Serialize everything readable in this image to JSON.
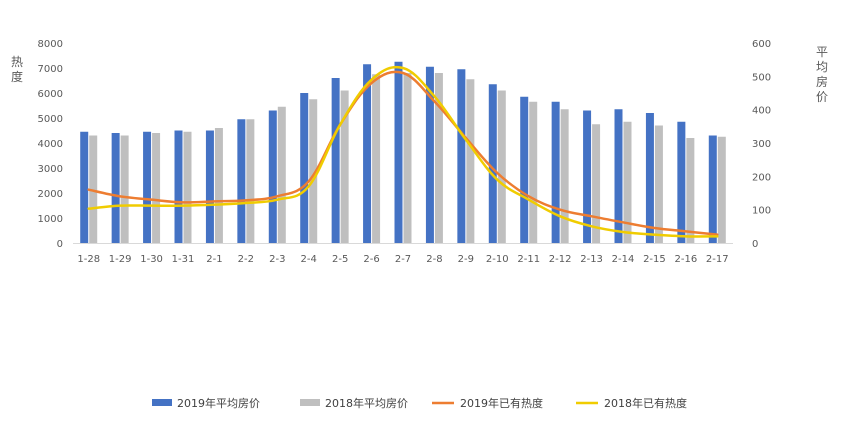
{
  "chart_data": {
    "type": "bar",
    "categories": [
      "1-28",
      "1-29",
      "1-30",
      "1-31",
      "2-1",
      "2-2",
      "2-3",
      "2-4",
      "2-5",
      "2-6",
      "2-7",
      "2-8",
      "2-9",
      "2-10",
      "2-11",
      "2-12",
      "2-13",
      "2-14",
      "2-15",
      "2-16",
      "2-17"
    ],
    "y_left": {
      "label": "热度",
      "ylim": [
        0,
        8000
      ],
      "ticks": [
        0,
        1000,
        2000,
        3000,
        4000,
        5000,
        6000,
        7000,
        8000
      ]
    },
    "y_right": {
      "label": "平均房价",
      "ylim": [
        0,
        600
      ],
      "ticks": [
        0,
        100,
        200,
        300,
        400,
        500,
        600
      ]
    },
    "series": [
      {
        "name": "2019年平均房价",
        "kind": "bar",
        "axis": "left",
        "color": "#4472C4",
        "values": [
          4450,
          4400,
          4450,
          4500,
          4500,
          4950,
          5300,
          6000,
          6600,
          7150,
          7250,
          7050,
          6950,
          6350,
          5850,
          5650,
          5300,
          5350,
          5200,
          4850,
          4300
        ]
      },
      {
        "name": "2018年平均房价",
        "kind": "bar",
        "axis": "left",
        "color": "#BFBFBF",
        "values": [
          4300,
          4300,
          4400,
          4450,
          4600,
          4950,
          5450,
          5750,
          6100,
          6750,
          6800,
          6800,
          6550,
          6100,
          5650,
          5350,
          4750,
          4850,
          4700,
          4200,
          4250
        ]
      },
      {
        "name": "2019年已有热度",
        "kind": "line",
        "axis": "right",
        "color": "#ED7D31",
        "values": [
          160,
          140,
          130,
          122,
          125,
          128,
          140,
          185,
          355,
          480,
          510,
          425,
          315,
          210,
          140,
          100,
          80,
          62,
          45,
          35,
          25
        ]
      },
      {
        "name": "2018年已有热度",
        "kind": "line",
        "axis": "right",
        "color": "#F0CC00",
        "values": [
          103,
          112,
          112,
          112,
          115,
          120,
          130,
          170,
          355,
          490,
          525,
          440,
          310,
          190,
          130,
          80,
          50,
          33,
          25,
          20,
          20
        ]
      }
    ],
    "legend_position": "bottom",
    "grid": false
  }
}
